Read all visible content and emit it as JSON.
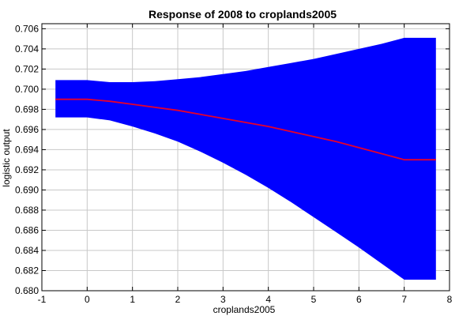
{
  "chart_data": {
    "type": "area",
    "title": "Response of 2008 to croplands2005",
    "xlabel": "croplands2005",
    "ylabel": "logistic output",
    "xlim": [
      -1,
      8
    ],
    "ylim": [
      0.68,
      0.7065
    ],
    "xticks": [
      -1,
      0,
      1,
      2,
      3,
      4,
      5,
      6,
      7,
      8
    ],
    "xtick_labels": [
      "-1",
      "0",
      "1",
      "2",
      "3",
      "4",
      "5",
      "6",
      "7",
      "8"
    ],
    "yticks": [
      0.68,
      0.682,
      0.684,
      0.686,
      0.688,
      0.69,
      0.692,
      0.694,
      0.696,
      0.698,
      0.7,
      0.702,
      0.704,
      0.706
    ],
    "ytick_labels": [
      "0.680",
      "0.682",
      "0.684",
      "0.686",
      "0.688",
      "0.690",
      "0.692",
      "0.694",
      "0.696",
      "0.698",
      "0.700",
      "0.702",
      "0.704",
      "0.706"
    ],
    "grid": true,
    "colors": {
      "band": "#0000ff",
      "line": "#e8002a",
      "grid": "#c8c8c8",
      "axis": "#000000"
    },
    "series": [
      {
        "role": "mean",
        "x": [
          -0.7,
          0,
          0.5,
          1,
          1.5,
          2,
          2.5,
          3,
          3.5,
          4,
          4.5,
          5,
          5.5,
          6,
          6.5,
          7,
          7.7
        ],
        "y": [
          0.699,
          0.699,
          0.6988,
          0.6985,
          0.6982,
          0.6979,
          0.6975,
          0.6971,
          0.6967,
          0.6963,
          0.6958,
          0.6953,
          0.6948,
          0.6942,
          0.6936,
          0.693,
          0.693
        ]
      },
      {
        "role": "upper",
        "x": [
          -0.7,
          0,
          0.5,
          1,
          1.5,
          2,
          2.5,
          3,
          3.5,
          4,
          4.5,
          5,
          5.5,
          6,
          6.5,
          7,
          7.7
        ],
        "y": [
          0.7009,
          0.7009,
          0.7007,
          0.7007,
          0.7008,
          0.701,
          0.7012,
          0.7015,
          0.7018,
          0.7022,
          0.7026,
          0.703,
          0.7035,
          0.704,
          0.7045,
          0.7051,
          0.7051
        ]
      },
      {
        "role": "lower",
        "x": [
          -0.7,
          0,
          0.5,
          1,
          1.5,
          2,
          2.5,
          3,
          3.5,
          4,
          4.5,
          5,
          5.5,
          6,
          6.5,
          7,
          7.7
        ],
        "y": [
          0.6972,
          0.6972,
          0.6969,
          0.6963,
          0.6956,
          0.6948,
          0.6938,
          0.6927,
          0.6915,
          0.6902,
          0.6888,
          0.6873,
          0.6858,
          0.6843,
          0.6827,
          0.6811,
          0.6811
        ]
      }
    ]
  }
}
